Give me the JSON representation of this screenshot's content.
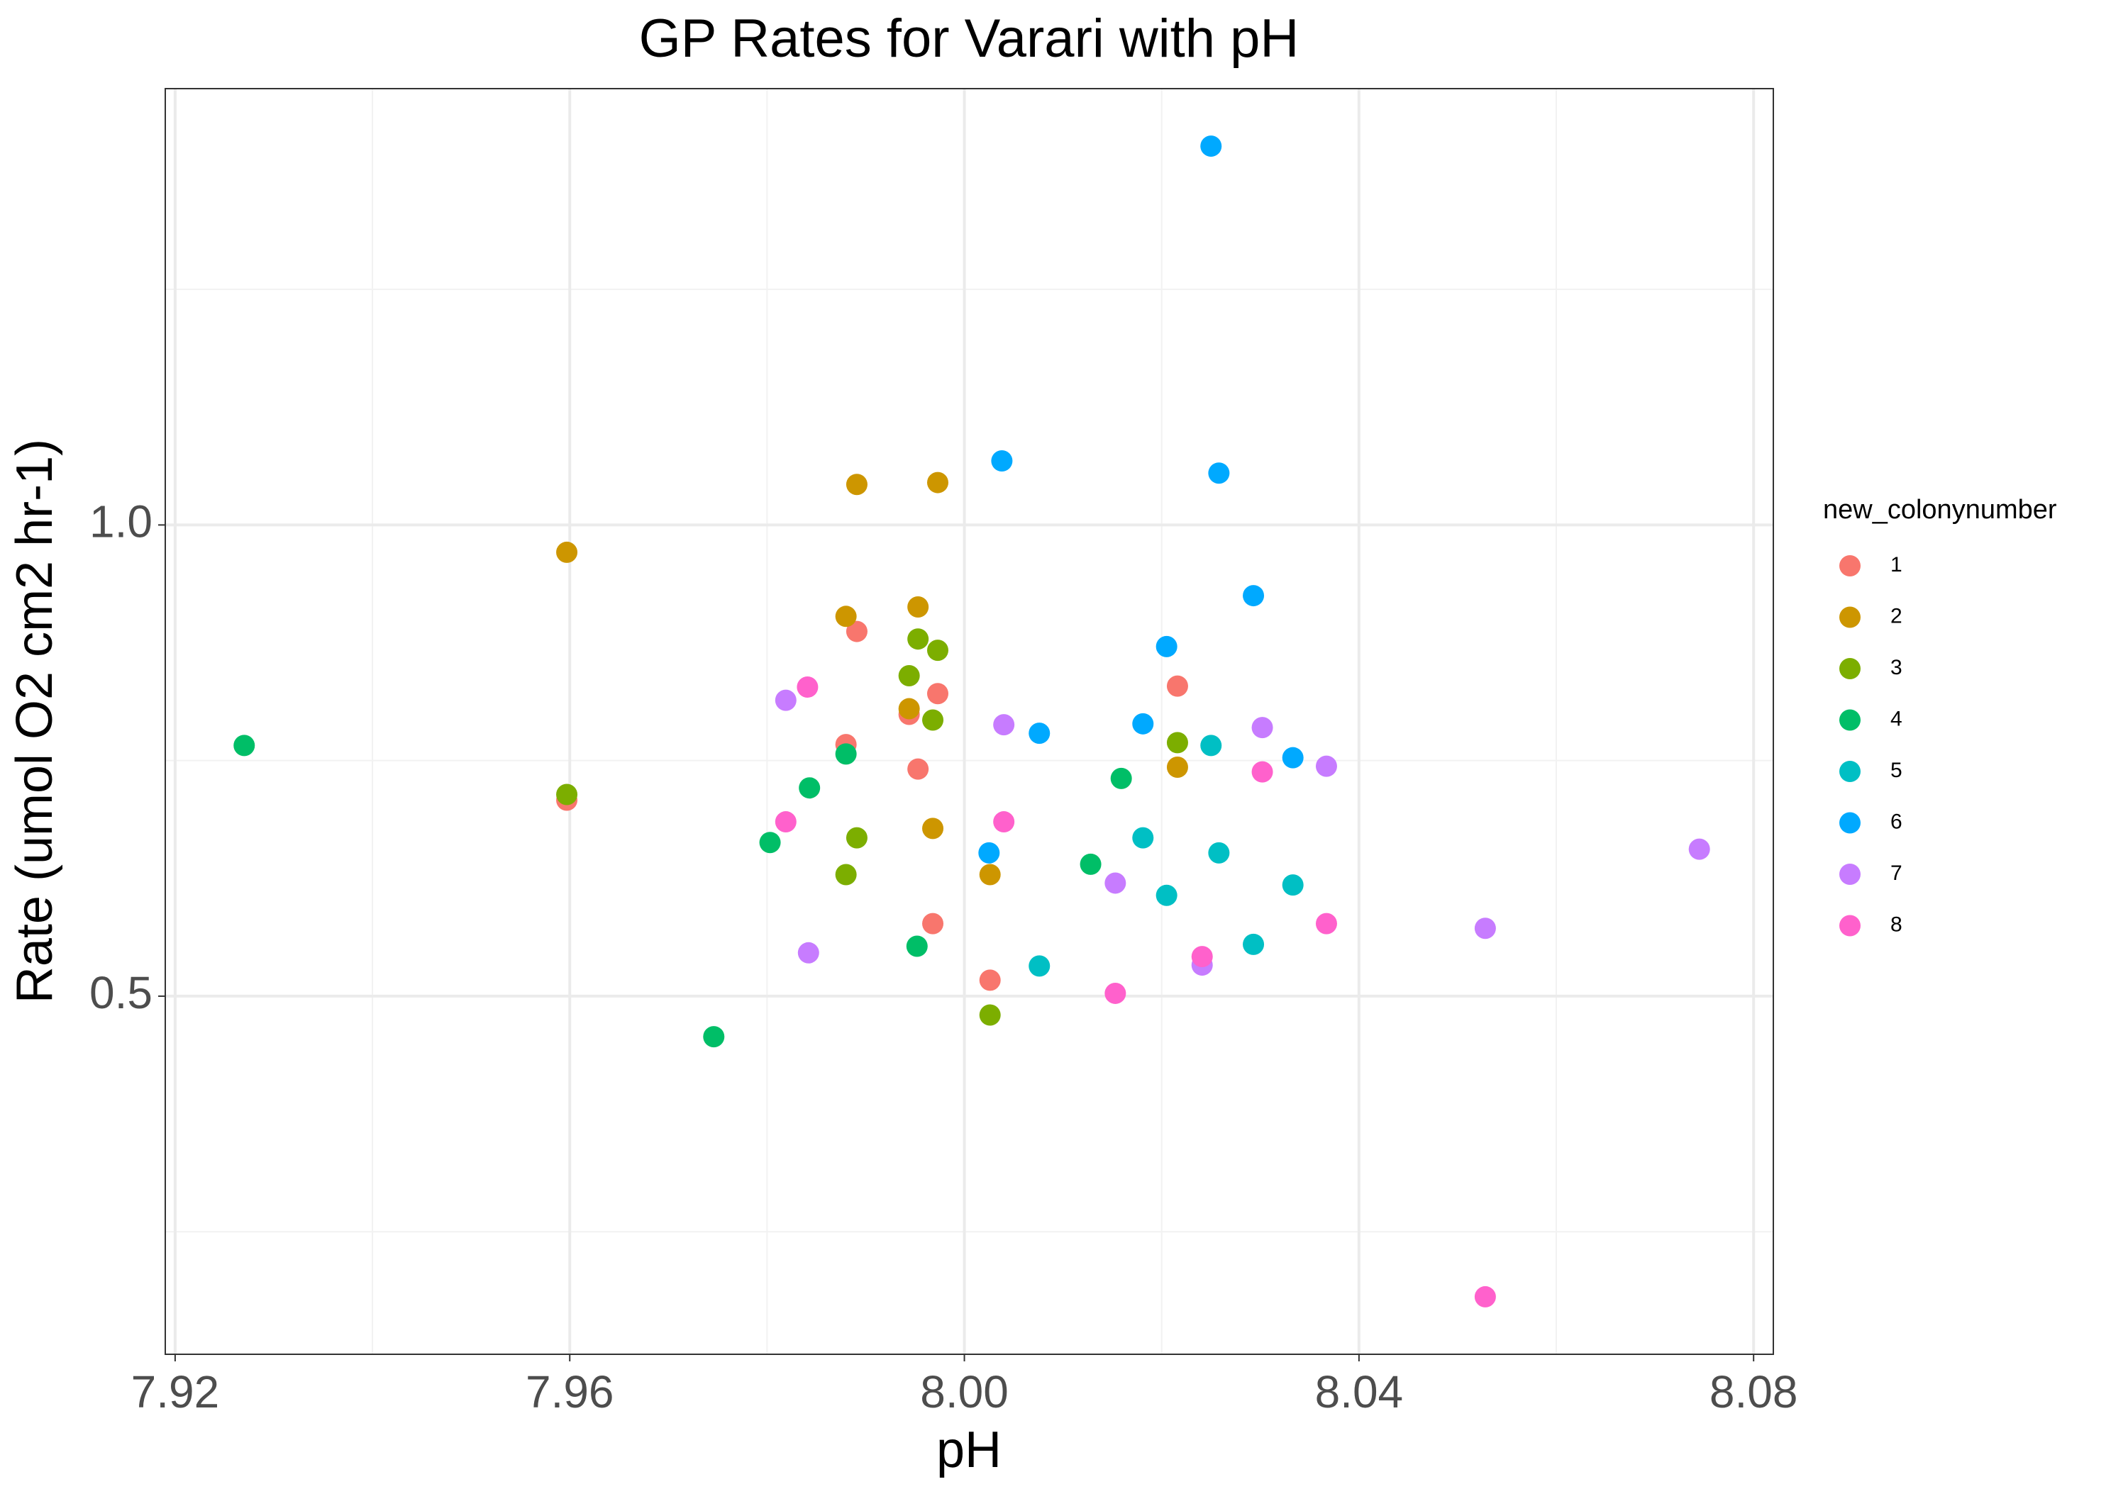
{
  "chart_data": {
    "type": "scatter",
    "title": "GP Rates for Varari with pH",
    "x_label": "pH",
    "y_label": "Rate (umol O2 cm2 hr-1)",
    "legend_title": "new_colonynumber",
    "xlim": [
      7.919,
      8.082
    ],
    "xticks": [
      7.92,
      7.96,
      {
        "value": 8.0,
        "label": "8.00"
      },
      8.04,
      8.08
    ],
    "ylim": [
      0.12,
      1.463
    ],
    "yticks": [
      0.5,
      {
        "value": 1.0,
        "label": "1.0"
      }
    ],
    "grid": true,
    "legend": "right",
    "series": [
      {
        "name": "1",
        "color": "#F8766D",
        "x": [
          7.9597,
          7.9891,
          7.9973,
          7.9944,
          7.988,
          7.9953,
          7.9968,
          8.0026,
          8.0216
        ],
        "values": [
          0.708,
          0.887,
          0.821,
          0.799,
          0.767,
          0.741,
          0.577,
          0.517,
          0.829
        ]
      },
      {
        "name": "2",
        "color": "#CD9600",
        "x": [
          7.9597,
          7.9891,
          7.9973,
          7.988,
          7.9953,
          7.9944,
          7.9968,
          8.0026,
          8.0216
        ],
        "values": [
          0.971,
          1.043,
          1.045,
          0.903,
          0.913,
          0.805,
          0.678,
          0.629,
          0.743
        ]
      },
      {
        "name": "3",
        "color": "#7CAE00",
        "x": [
          7.9597,
          7.9953,
          7.9973,
          7.9944,
          7.9968,
          7.9891,
          7.988,
          8.0026,
          8.0216
        ],
        "values": [
          0.714,
          0.879,
          0.867,
          0.84,
          0.793,
          0.668,
          0.629,
          0.48,
          0.769
        ]
      },
      {
        "name": "4",
        "color": "#00BE67",
        "x": [
          7.927,
          7.9746,
          7.9803,
          7.9843,
          7.988,
          7.9952,
          8.0128,
          8.0159
        ],
        "values": [
          0.766,
          0.457,
          0.663,
          0.721,
          0.757,
          0.553,
          0.64,
          0.731
        ]
      },
      {
        "name": "5",
        "color": "#00BFC4",
        "x": [
          8.0076,
          8.0181,
          8.0205,
          8.025,
          8.0258,
          8.0293,
          8.0333
        ],
        "values": [
          0.532,
          0.668,
          0.607,
          0.766,
          0.652,
          0.555,
          0.618
        ]
      },
      {
        "name": "6",
        "color": "#00A9FF",
        "x": [
          8.025,
          8.0038,
          8.0258,
          8.0293,
          8.0205,
          8.0181,
          8.0076,
          8.0333,
          8.0025
        ],
        "values": [
          1.402,
          1.068,
          1.055,
          0.925,
          0.871,
          0.789,
          0.779,
          0.753,
          0.652
        ]
      },
      {
        "name": "7",
        "color": "#C77CFF",
        "x": [
          7.9819,
          7.9842,
          8.004,
          8.0153,
          8.0241,
          8.0302,
          8.0367,
          8.0528,
          8.0745
        ],
        "values": [
          0.814,
          0.546,
          0.788,
          0.62,
          0.533,
          0.785,
          0.744,
          0.572,
          0.656
        ]
      },
      {
        "name": "8",
        "color": "#FF61CC",
        "x": [
          7.9841,
          7.9819,
          8.004,
          8.0153,
          8.0241,
          8.0302,
          8.0367,
          8.0528
        ],
        "values": [
          0.828,
          0.685,
          0.685,
          0.503,
          0.542,
          0.738,
          0.577,
          0.181
        ]
      }
    ]
  }
}
